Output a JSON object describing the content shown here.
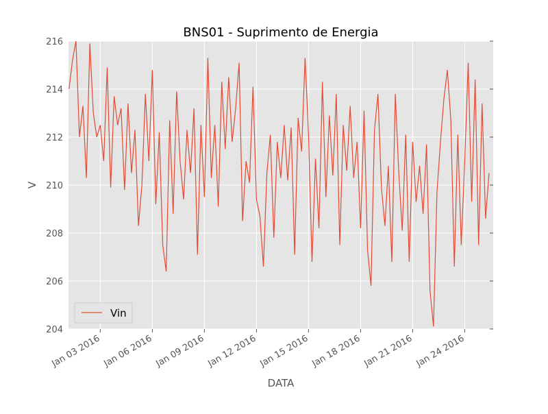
{
  "chart_data": {
    "type": "line",
    "title": "BNS01 - Suprimento de Energia",
    "x_label": "DATA",
    "y_label": "V",
    "x": [
      1.2,
      1.4,
      1.6,
      1.8,
      2.0,
      2.2,
      2.4,
      2.6,
      2.8,
      3.0,
      3.2,
      3.4,
      3.6,
      3.8,
      4.0,
      4.2,
      4.4,
      4.6,
      4.8,
      5.0,
      5.2,
      5.4,
      5.6,
      5.8,
      6.0,
      6.2,
      6.4,
      6.6,
      6.8,
      7.0,
      7.2,
      7.4,
      7.6,
      7.8,
      8.0,
      8.2,
      8.4,
      8.6,
      8.8,
      9.0,
      9.2,
      9.4,
      9.6,
      9.8,
      10.0,
      10.2,
      10.4,
      10.6,
      10.8,
      11.0,
      11.2,
      11.4,
      11.6,
      11.8,
      12.0,
      12.2,
      12.4,
      12.6,
      12.8,
      13.0,
      13.2,
      13.4,
      13.6,
      13.8,
      14.0,
      14.2,
      14.4,
      14.6,
      14.8,
      15.0,
      15.2,
      15.4,
      15.6,
      15.8,
      16.0,
      16.2,
      16.4,
      16.6,
      16.8,
      17.0,
      17.2,
      17.4,
      17.6,
      17.8,
      18.0,
      18.2,
      18.4,
      18.6,
      18.8,
      19.0,
      19.2,
      19.4,
      19.6,
      19.8,
      20.0,
      20.2,
      20.4,
      20.6,
      20.8,
      21.0,
      21.2,
      21.4,
      21.6,
      21.8,
      22.0,
      22.2,
      22.4,
      22.6,
      22.8,
      23.0,
      23.2,
      23.4,
      23.6,
      23.8,
      24.0,
      24.2,
      24.4,
      24.6,
      24.8,
      25.0,
      25.2,
      25.4
    ],
    "series": [
      {
        "name": "Vin",
        "color": "#e24a33",
        "values": [
          214,
          215.2,
          216,
          212,
          213.3,
          210.3,
          215.9,
          213,
          212,
          212.5,
          211,
          214.9,
          209.9,
          213.7,
          212.5,
          213.2,
          209.8,
          213.4,
          210.5,
          212.3,
          208.3,
          210,
          213.8,
          211,
          214.8,
          209.2,
          212.2,
          207.5,
          206.4,
          212.7,
          208.8,
          213.9,
          211,
          209.4,
          212.3,
          210.5,
          213.2,
          207.1,
          212.5,
          209.5,
          215.3,
          210.3,
          212.5,
          209.1,
          214.3,
          211.5,
          214.5,
          211.8,
          213.2,
          215.1,
          208.5,
          211,
          210.1,
          214.1,
          209.4,
          208.7,
          206.6,
          210.5,
          212.1,
          207.8,
          211.8,
          210.3,
          212.5,
          210.2,
          212.4,
          207.1,
          212.8,
          211.4,
          215.3,
          212.1,
          206.8,
          211.1,
          208.2,
          214.3,
          209.5,
          212.9,
          210.4,
          213.8,
          207.5,
          212.5,
          210.6,
          213.3,
          210.3,
          211.8,
          208.2,
          213.1,
          207.3,
          205.8,
          212.3,
          213.8,
          209.9,
          208.3,
          210.8,
          206.8,
          213.8,
          210.5,
          208.1,
          212.1,
          206.8,
          211.8,
          209.3,
          210.8,
          208.8,
          211.7,
          205.6,
          204.1,
          209.7,
          211.8,
          213.6,
          214.8,
          212.7,
          206.6,
          212.1,
          207.5,
          211,
          215.1,
          209.3,
          214.4,
          207.5,
          213.4,
          208.6,
          210.5
        ]
      }
    ],
    "xlim": [
      1.17,
      25.64
    ],
    "xticks": [
      {
        "value": 3,
        "label": "Jan 03 2016"
      },
      {
        "value": 6,
        "label": "Jan 06 2016"
      },
      {
        "value": 9,
        "label": "Jan 09 2016"
      },
      {
        "value": 12,
        "label": "Jan 12 2016"
      },
      {
        "value": 15,
        "label": "Jan 15 2016"
      },
      {
        "value": 18,
        "label": "Jan 18 2016"
      },
      {
        "value": 21,
        "label": "Jan 21 2016"
      },
      {
        "value": 24,
        "label": "Jan 24 2016"
      }
    ],
    "ylim": [
      204,
      216
    ],
    "yticks": [
      204,
      206,
      208,
      210,
      212,
      214,
      216
    ],
    "grid": true,
    "legend": "lower left"
  }
}
